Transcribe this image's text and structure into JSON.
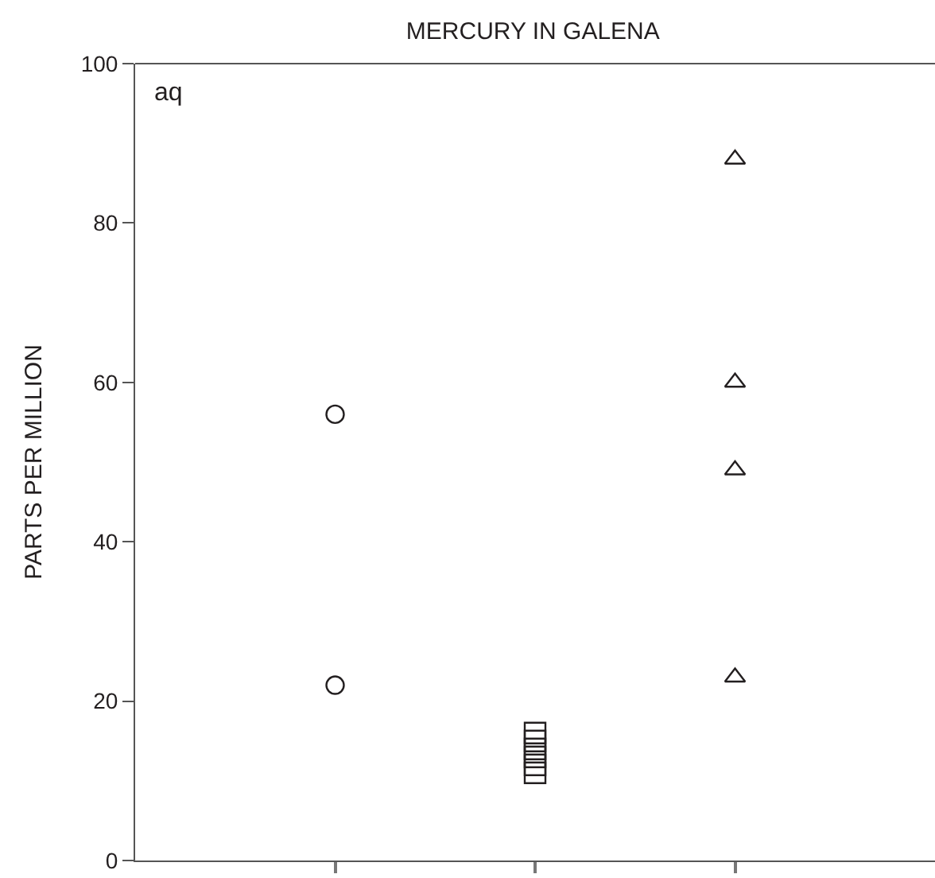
{
  "chart_data": {
    "type": "scatter",
    "title": "MERCURY IN GALENA",
    "ylabel": "PARTS PER MILLION",
    "annotations": [
      "aq"
    ],
    "categories": [
      null,
      null,
      null
    ],
    "ylim": [
      0,
      100
    ],
    "yticks": [
      0,
      20,
      40,
      60,
      80,
      100
    ],
    "tick_labels": "y",
    "grid": false,
    "series": [
      {
        "marker": "circle",
        "color": "#231f20",
        "values": [
          56,
          null,
          null
        ]
      },
      {
        "marker": "circle",
        "color": "#231f20",
        "values": [
          22,
          null,
          null
        ]
      },
      {
        "marker": "square",
        "color": "#231f20",
        "values": [
          null,
          16,
          null
        ]
      },
      {
        "marker": "square",
        "color": "#231f20",
        "values": [
          null,
          15,
          null
        ]
      },
      {
        "marker": "square",
        "color": "#231f20",
        "values": [
          null,
          14,
          null
        ]
      },
      {
        "marker": "square",
        "color": "#231f20",
        "values": [
          null,
          13,
          null
        ]
      },
      {
        "marker": "square",
        "color": "#231f20",
        "values": [
          null,
          12,
          null
        ]
      },
      {
        "marker": "square",
        "color": "#231f20",
        "values": [
          null,
          11,
          null
        ]
      },
      {
        "marker": "triangle",
        "color": "#231f20",
        "values": [
          null,
          null,
          88
        ]
      },
      {
        "marker": "triangle",
        "color": "#231f20",
        "values": [
          null,
          null,
          60
        ]
      },
      {
        "marker": "triangle",
        "color": "#231f20",
        "values": [
          null,
          null,
          49
        ]
      },
      {
        "marker": "triangle",
        "color": "#231f20",
        "values": [
          null,
          null,
          23
        ]
      }
    ]
  }
}
